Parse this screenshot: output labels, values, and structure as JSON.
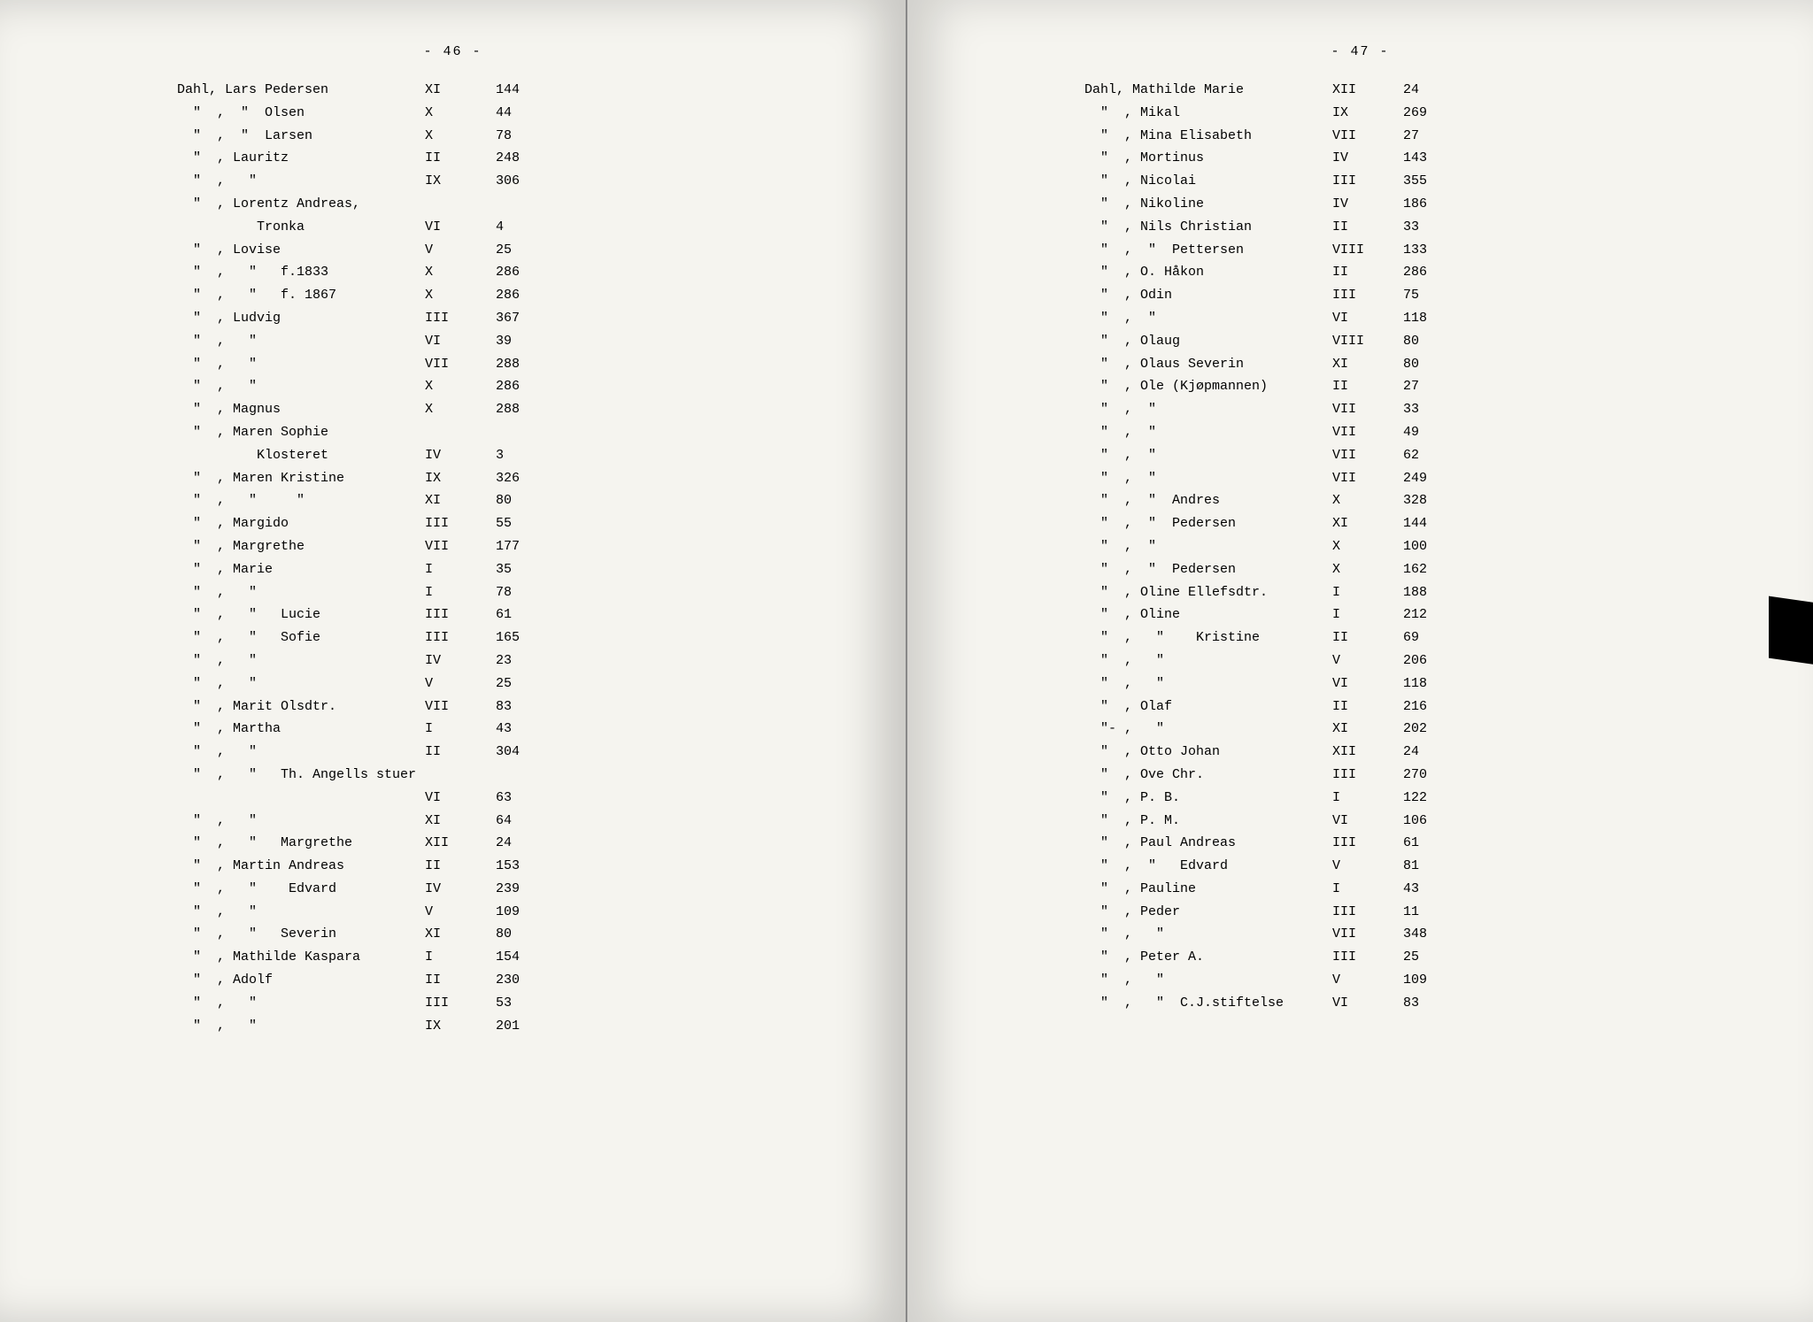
{
  "left": {
    "page_label": "- 46 -",
    "rows": [
      {
        "name": "Dahl, Lars Pedersen",
        "vol": "XI",
        "pg": "144"
      },
      {
        "name": "  \"  ,  \"  Olsen",
        "vol": "X",
        "pg": "44"
      },
      {
        "name": "  \"  ,  \"  Larsen",
        "vol": "X",
        "pg": "78"
      },
      {
        "name": "  \"  , Lauritz",
        "vol": "II",
        "pg": "248"
      },
      {
        "name": "  \"  ,   \"",
        "vol": "IX",
        "pg": "306"
      },
      {
        "name": "  \"  , Lorentz Andreas,",
        "vol": "",
        "pg": ""
      },
      {
        "name": "          Tronka",
        "vol": "VI",
        "pg": "4"
      },
      {
        "name": "  \"  , Lovise",
        "vol": "V",
        "pg": "25"
      },
      {
        "name": "  \"  ,   \"   f.1833",
        "vol": "X",
        "pg": "286"
      },
      {
        "name": "  \"  ,   \"   f. 1867",
        "vol": "X",
        "pg": "286"
      },
      {
        "name": "  \"  , Ludvig",
        "vol": "III",
        "pg": "367"
      },
      {
        "name": "  \"  ,   \"",
        "vol": "VI",
        "pg": "39"
      },
      {
        "name": "  \"  ,   \"",
        "vol": "VII",
        "pg": "288"
      },
      {
        "name": "  \"  ,   \"",
        "vol": "X",
        "pg": "286"
      },
      {
        "name": "  \"  , Magnus",
        "vol": "X",
        "pg": "288"
      },
      {
        "name": "  \"  , Maren Sophie",
        "vol": "",
        "pg": ""
      },
      {
        "name": "          Klosteret",
        "vol": "IV",
        "pg": "3"
      },
      {
        "name": "  \"  , Maren Kristine",
        "vol": "IX",
        "pg": "326"
      },
      {
        "name": "  \"  ,   \"     \"",
        "vol": "XI",
        "pg": "80"
      },
      {
        "name": "  \"  , Margido",
        "vol": "III",
        "pg": "55"
      },
      {
        "name": "  \"  , Margrethe",
        "vol": "VII",
        "pg": "177"
      },
      {
        "name": "  \"  , Marie",
        "vol": "I",
        "pg": "35"
      },
      {
        "name": "  \"  ,   \"",
        "vol": "I",
        "pg": "78"
      },
      {
        "name": "  \"  ,   \"   Lucie",
        "vol": "III",
        "pg": "61"
      },
      {
        "name": "  \"  ,   \"   Sofie",
        "vol": "III",
        "pg": "165"
      },
      {
        "name": "  \"  ,   \"",
        "vol": "IV",
        "pg": "23"
      },
      {
        "name": "  \"  ,   \"",
        "vol": "V",
        "pg": "25"
      },
      {
        "name": "  \"  , Marit Olsdtr.",
        "vol": "VII",
        "pg": "83"
      },
      {
        "name": "  \"  , Martha",
        "vol": "I",
        "pg": "43"
      },
      {
        "name": "  \"  ,   \"",
        "vol": "II",
        "pg": "304"
      },
      {
        "name": "  \"  ,   \"   Th. Angells stuer",
        "vol": "",
        "pg": ""
      },
      {
        "name": "",
        "vol": "VI",
        "pg": "63"
      },
      {
        "name": "  \"  ,   \"",
        "vol": "XI",
        "pg": "64"
      },
      {
        "name": "  \"  ,   \"   Margrethe",
        "vol": "XII",
        "pg": "24"
      },
      {
        "name": "  \"  , Martin Andreas",
        "vol": "II",
        "pg": "153"
      },
      {
        "name": "  \"  ,   \"    Edvard",
        "vol": "IV",
        "pg": "239"
      },
      {
        "name": "  \"  ,   \"",
        "vol": "V",
        "pg": "109"
      },
      {
        "name": "  \"  ,   \"   Severin",
        "vol": "XI",
        "pg": "80"
      },
      {
        "name": "  \"  , Mathilde Kaspara",
        "vol": "I",
        "pg": "154"
      },
      {
        "name": "  \"  , Adolf",
        "vol": "II",
        "pg": "230"
      },
      {
        "name": "  \"  ,   \"",
        "vol": "III",
        "pg": "53"
      },
      {
        "name": "  \"  ,   \"",
        "vol": "IX",
        "pg": "201"
      }
    ]
  },
  "right": {
    "page_label": "- 47 -",
    "rows": [
      {
        "name": "Dahl, Mathilde Marie",
        "vol": "XII",
        "pg": "24"
      },
      {
        "name": "  \"  , Mikal",
        "vol": "IX",
        "pg": "269"
      },
      {
        "name": "  \"  , Mina Elisabeth",
        "vol": "VII",
        "pg": "27"
      },
      {
        "name": "  \"  , Mortinus",
        "vol": "IV",
        "pg": "143"
      },
      {
        "name": "  \"  , Nicolai",
        "vol": "III",
        "pg": "355"
      },
      {
        "name": "  \"  , Nikoline",
        "vol": "IV",
        "pg": "186"
      },
      {
        "name": "  \"  , Nils Christian",
        "vol": "II",
        "pg": "33"
      },
      {
        "name": "  \"  ,  \"  Pettersen",
        "vol": "VIII",
        "pg": "133"
      },
      {
        "name": "  \"  , O. Håkon",
        "vol": "II",
        "pg": "286"
      },
      {
        "name": "  \"  , Odin",
        "vol": "III",
        "pg": "75"
      },
      {
        "name": "  \"  ,  \"",
        "vol": "VI",
        "pg": "118"
      },
      {
        "name": "  \"  , Olaug",
        "vol": "VIII",
        "pg": "80"
      },
      {
        "name": "  \"  , Olaus Severin",
        "vol": "XI",
        "pg": "80"
      },
      {
        "name": "  \"  , Ole (Kjøpmannen)",
        "vol": "II",
        "pg": "27"
      },
      {
        "name": "  \"  ,  \"",
        "vol": "VII",
        "pg": "33"
      },
      {
        "name": "  \"  ,  \"",
        "vol": "VII",
        "pg": "49"
      },
      {
        "name": "  \"  ,  \"",
        "vol": "VII",
        "pg": "62"
      },
      {
        "name": "  \"  ,  \"",
        "vol": "VII",
        "pg": "249"
      },
      {
        "name": "  \"  ,  \"  Andres",
        "vol": "X",
        "pg": "328"
      },
      {
        "name": "  \"  ,  \"  Pedersen",
        "vol": "XI",
        "pg": "144"
      },
      {
        "name": "  \"  ,  \"",
        "vol": "X",
        "pg": "100"
      },
      {
        "name": "  \"  ,  \"  Pedersen",
        "vol": "X",
        "pg": "162"
      },
      {
        "name": "  \"  , Oline Ellefsdtr.",
        "vol": "I",
        "pg": "188"
      },
      {
        "name": "  \"  , Oline",
        "vol": "I",
        "pg": "212"
      },
      {
        "name": "  \"  ,   \"    Kristine",
        "vol": "II",
        "pg": "69"
      },
      {
        "name": "  \"  ,   \"",
        "vol": "V",
        "pg": "206"
      },
      {
        "name": "  \"  ,   \"",
        "vol": "VI",
        "pg": "118"
      },
      {
        "name": "  \"  , Olaf",
        "vol": "II",
        "pg": "216"
      },
      {
        "name": "  \"- ,   \"",
        "vol": "XI",
        "pg": "202"
      },
      {
        "name": "  \"  , Otto Johan",
        "vol": "XII",
        "pg": "24"
      },
      {
        "name": "  \"  , Ove Chr.",
        "vol": "III",
        "pg": "270"
      },
      {
        "name": "  \"  , P. B.",
        "vol": "I",
        "pg": "122"
      },
      {
        "name": "  \"  , P. M.",
        "vol": "VI",
        "pg": "106"
      },
      {
        "name": "  \"  , Paul Andreas",
        "vol": "III",
        "pg": "61"
      },
      {
        "name": "  \"  ,  \"   Edvard",
        "vol": "V",
        "pg": "81"
      },
      {
        "name": "  \"  , Pauline",
        "vol": "I",
        "pg": "43"
      },
      {
        "name": "  \"  , Peder",
        "vol": "III",
        "pg": "11"
      },
      {
        "name": "  \"  ,   \"",
        "vol": "VII",
        "pg": "348"
      },
      {
        "name": "  \"  , Peter A.",
        "vol": "III",
        "pg": "25"
      },
      {
        "name": "  \"  ,   \"",
        "vol": "V",
        "pg": "109"
      },
      {
        "name": "  \"  ,   \"  C.J.stiftelse",
        "vol": "VI",
        "pg": "83"
      }
    ]
  }
}
